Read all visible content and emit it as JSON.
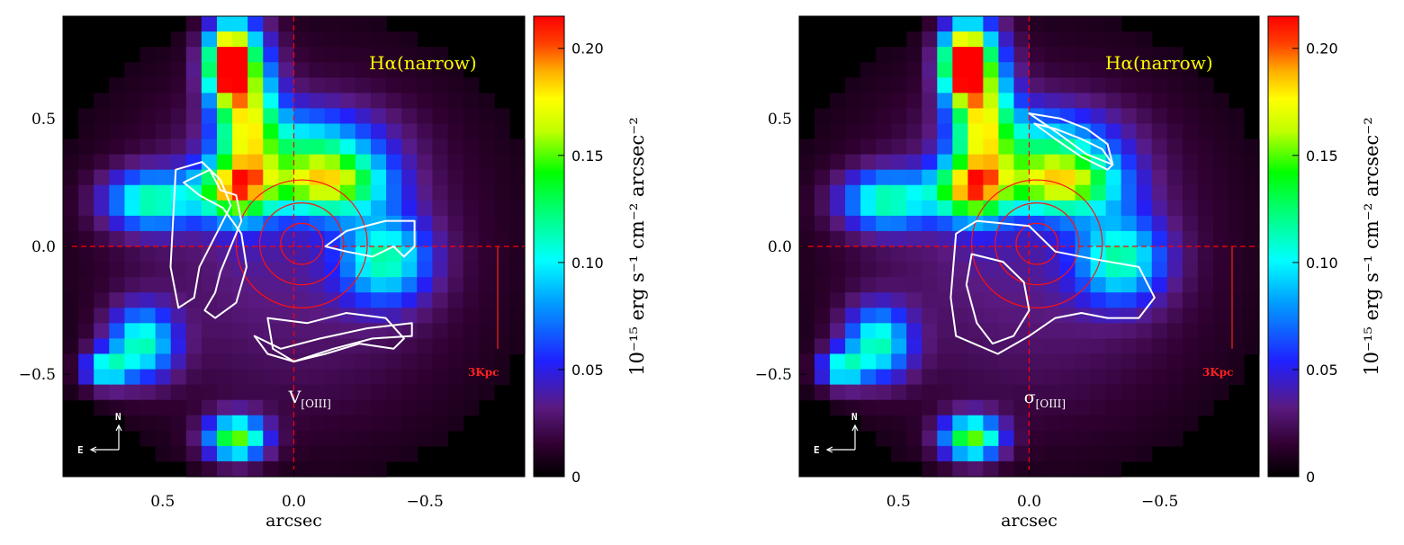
{
  "chart_data": [
    {
      "type": "heatmap",
      "panel": "left",
      "xlabel": "arcsec",
      "ylabel": "",
      "xlim": [
        0.88,
        -0.88
      ],
      "ylim": [
        -0.9,
        0.9
      ],
      "x_ticks": [
        0.5,
        0.0,
        -0.5
      ],
      "x_tick_labels": [
        "0.5",
        "0.0",
        "−0.5"
      ],
      "y_ticks": [
        0.5,
        0.0,
        -0.5
      ],
      "y_tick_labels": [
        "0.5",
        "0.0",
        "−0.5"
      ],
      "line_label": "Hα(narrow)",
      "contour_label": "V",
      "contour_label_sub": "[OIII]",
      "scale_bar_label": "3Kpc",
      "compass": {
        "north": "N",
        "east": "E"
      },
      "colorbar": {
        "label": "10⁻¹⁵ erg s⁻¹ cm⁻² arcsec⁻²",
        "range": [
          0,
          0.215
        ],
        "ticks": [
          0,
          0.05,
          0.1,
          0.15,
          0.2
        ],
        "tick_labels": [
          "0",
          "0.05",
          "0.10",
          "0.15",
          "0.20"
        ],
        "colormap": "rainbow"
      },
      "crosshair": {
        "x": 0.0,
        "y": 0.0,
        "color": "#ff0000"
      },
      "red_circles_radii_arcsec": [
        0.08,
        0.16,
        0.25
      ],
      "white_contours": [
        [
          [
            0.42,
            0.25
          ],
          [
            0.32,
            0.3
          ],
          [
            0.28,
            0.22
          ],
          [
            0.22,
            0.2
          ],
          [
            0.2,
            0.1
          ],
          [
            0.24,
            0.0
          ],
          [
            0.28,
            -0.1
          ],
          [
            0.3,
            -0.18
          ],
          [
            0.34,
            -0.25
          ],
          [
            0.3,
            -0.28
          ],
          [
            0.22,
            -0.22
          ],
          [
            0.18,
            -0.08
          ],
          [
            0.2,
            0.05
          ],
          [
            0.27,
            0.15
          ],
          [
            0.36,
            0.2
          ],
          [
            0.42,
            0.25
          ]
        ],
        [
          [
            0.45,
            0.3
          ],
          [
            0.35,
            0.33
          ],
          [
            0.28,
            0.26
          ],
          [
            0.24,
            0.16
          ],
          [
            0.3,
            0.04
          ],
          [
            0.36,
            -0.08
          ],
          [
            0.38,
            -0.2
          ],
          [
            0.44,
            -0.24
          ],
          [
            0.47,
            -0.08
          ],
          [
            0.45,
            0.3
          ]
        ],
        [
          [
            -0.12,
            0.0
          ],
          [
            -0.2,
            0.06
          ],
          [
            -0.35,
            0.1
          ],
          [
            -0.46,
            0.1
          ],
          [
            -0.46,
            0.0
          ],
          [
            -0.42,
            -0.04
          ],
          [
            -0.38,
            0.0
          ],
          [
            -0.3,
            -0.04
          ],
          [
            -0.2,
            -0.02
          ],
          [
            -0.12,
            0.0
          ]
        ],
        [
          [
            0.1,
            -0.28
          ],
          [
            -0.05,
            -0.3
          ],
          [
            -0.2,
            -0.26
          ],
          [
            -0.35,
            -0.28
          ],
          [
            -0.42,
            -0.36
          ],
          [
            -0.38,
            -0.4
          ],
          [
            -0.25,
            -0.38
          ],
          [
            -0.12,
            -0.42
          ],
          [
            0.0,
            -0.45
          ],
          [
            0.08,
            -0.4
          ],
          [
            0.1,
            -0.28
          ]
        ],
        [
          [
            0.15,
            -0.35
          ],
          [
            0.05,
            -0.4
          ],
          [
            -0.1,
            -0.36
          ],
          [
            -0.28,
            -0.32
          ],
          [
            -0.45,
            -0.3
          ],
          [
            -0.45,
            -0.35
          ],
          [
            -0.3,
            -0.36
          ],
          [
            -0.15,
            -0.4
          ],
          [
            0.0,
            -0.45
          ],
          [
            0.1,
            -0.42
          ],
          [
            0.15,
            -0.35
          ]
        ]
      ]
    },
    {
      "type": "heatmap",
      "panel": "right",
      "xlabel": "arcsec",
      "ylabel": "",
      "xlim": [
        0.88,
        -0.88
      ],
      "ylim": [
        -0.9,
        0.9
      ],
      "x_ticks": [
        0.5,
        0.0,
        -0.5
      ],
      "x_tick_labels": [
        "0.5",
        "0.0",
        "−0.5"
      ],
      "y_ticks": [
        0.5,
        0.0,
        -0.5
      ],
      "y_tick_labels": [
        "0.5",
        "0.0",
        "−0.5"
      ],
      "line_label": "Hα(narrow)",
      "contour_label": "σ",
      "contour_label_sub": "[OIII]",
      "scale_bar_label": "3Kpc",
      "compass": {
        "north": "N",
        "east": "E"
      },
      "colorbar": {
        "label": "10⁻¹⁵ erg s⁻¹ cm⁻² arcsec⁻²",
        "range": [
          0,
          0.215
        ],
        "ticks": [
          0,
          0.05,
          0.1,
          0.15,
          0.2
        ],
        "tick_labels": [
          "0",
          "0.05",
          "0.10",
          "0.15",
          "0.20"
        ],
        "colormap": "rainbow"
      },
      "crosshair": {
        "x": 0.0,
        "y": 0.0,
        "color": "#ff0000"
      },
      "red_circles_radii_arcsec": [
        0.08,
        0.16,
        0.25
      ],
      "white_contours": [
        [
          [
            -0.02,
            0.48
          ],
          [
            -0.1,
            0.46
          ],
          [
            -0.2,
            0.42
          ],
          [
            -0.28,
            0.38
          ],
          [
            -0.32,
            0.32
          ],
          [
            -0.3,
            0.3
          ],
          [
            -0.2,
            0.35
          ],
          [
            -0.1,
            0.42
          ],
          [
            -0.02,
            0.48
          ]
        ],
        [
          [
            0.0,
            0.52
          ],
          [
            -0.12,
            0.5
          ],
          [
            -0.22,
            0.46
          ],
          [
            -0.3,
            0.4
          ],
          [
            -0.32,
            0.32
          ],
          [
            -0.22,
            0.36
          ],
          [
            -0.1,
            0.45
          ],
          [
            0.0,
            0.52
          ]
        ],
        [
          [
            0.28,
            0.05
          ],
          [
            0.2,
            0.1
          ],
          [
            0.0,
            0.08
          ],
          [
            -0.1,
            -0.02
          ],
          [
            -0.25,
            -0.05
          ],
          [
            -0.42,
            -0.08
          ],
          [
            -0.48,
            -0.2
          ],
          [
            -0.42,
            -0.28
          ],
          [
            -0.3,
            -0.28
          ],
          [
            -0.2,
            -0.26
          ],
          [
            -0.1,
            -0.28
          ],
          [
            0.0,
            -0.35
          ],
          [
            0.12,
            -0.42
          ],
          [
            0.28,
            -0.35
          ],
          [
            0.3,
            -0.2
          ],
          [
            0.28,
            0.05
          ]
        ],
        [
          [
            0.22,
            -0.03
          ],
          [
            0.1,
            -0.06
          ],
          [
            0.02,
            -0.14
          ],
          [
            0.0,
            -0.25
          ],
          [
            0.06,
            -0.35
          ],
          [
            0.14,
            -0.38
          ],
          [
            0.2,
            -0.3
          ],
          [
            0.24,
            -0.15
          ],
          [
            0.22,
            -0.03
          ]
        ]
      ]
    }
  ]
}
